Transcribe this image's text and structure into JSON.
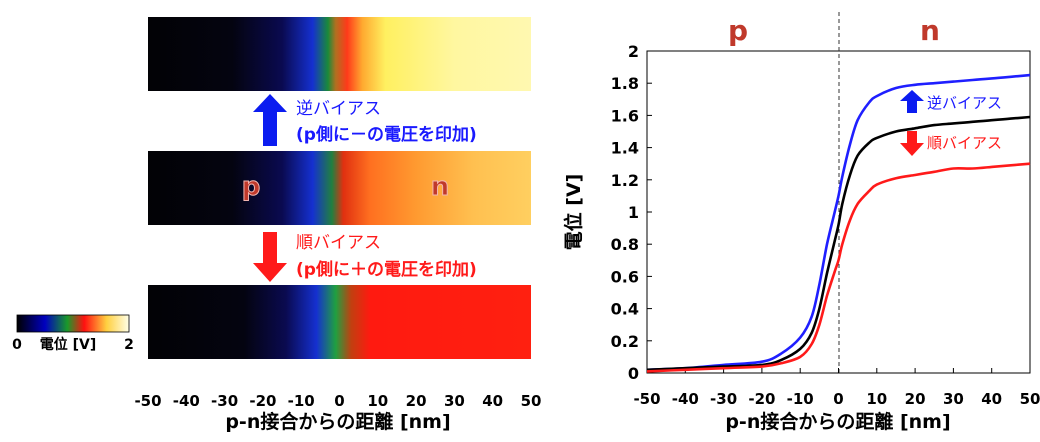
{
  "maps": {
    "top": {
      "state": "reverse"
    },
    "middle": {
      "state": "none",
      "p_label": "p",
      "n_label": "n"
    },
    "bottom": {
      "state": "forward"
    },
    "arrow_reverse": {
      "line1": "逆バイアス",
      "line2": "(p側に－の電圧を印加)"
    },
    "arrow_forward": {
      "line1": "順バイアス",
      "line2": "(p側に＋の電圧を印加)"
    },
    "x_ticks": [
      "-50",
      "-40",
      "-30",
      "-20",
      "-10",
      "0",
      "10",
      "20",
      "30",
      "40",
      "50"
    ],
    "xlabel": "p-n接合からの距離 [nm]"
  },
  "colorbar": {
    "min_label": "0",
    "max_label": "2",
    "label": "電位 [V]"
  },
  "chart_data": {
    "type": "line",
    "title": "",
    "region_labels": [
      "p",
      "n"
    ],
    "xlabel": "p-n接合からの距離 [nm]",
    "ylabel": "電位 [V]",
    "xlim": [
      -50,
      50
    ],
    "ylim": [
      0,
      2
    ],
    "x_ticks": [
      "-50",
      "-40",
      "-30",
      "-20",
      "-10",
      "0",
      "10",
      "20",
      "30",
      "40",
      "50"
    ],
    "y_ticks": [
      "0",
      "0.2",
      "0.4",
      "0.6",
      "0.8",
      "1",
      "1.2",
      "1.4",
      "1.6",
      "1.8",
      "2"
    ],
    "junction_x": 0,
    "x": [
      -50,
      -40,
      -30,
      -20,
      -15,
      -10,
      -7,
      -5,
      -3,
      -1,
      0,
      1,
      3,
      5,
      8,
      10,
      15,
      20,
      25,
      30,
      35,
      40,
      45,
      50
    ],
    "series": [
      {
        "name": "逆バイアス",
        "color": "#1f1fff",
        "values": [
          0.02,
          0.03,
          0.05,
          0.07,
          0.12,
          0.22,
          0.35,
          0.55,
          0.8,
          1.0,
          1.1,
          1.22,
          1.42,
          1.57,
          1.68,
          1.72,
          1.77,
          1.79,
          1.8,
          1.81,
          1.82,
          1.83,
          1.84,
          1.85
        ]
      },
      {
        "name": "",
        "color": "#000000",
        "values": [
          0.02,
          0.03,
          0.04,
          0.05,
          0.08,
          0.15,
          0.25,
          0.4,
          0.62,
          0.82,
          0.92,
          1.05,
          1.23,
          1.35,
          1.43,
          1.46,
          1.5,
          1.52,
          1.54,
          1.55,
          1.56,
          1.57,
          1.58,
          1.59
        ]
      },
      {
        "name": "順バイアス",
        "color": "#ff1a1a",
        "values": [
          0.01,
          0.02,
          0.03,
          0.04,
          0.06,
          0.1,
          0.18,
          0.3,
          0.48,
          0.63,
          0.7,
          0.8,
          0.95,
          1.05,
          1.13,
          1.17,
          1.21,
          1.23,
          1.25,
          1.27,
          1.27,
          1.28,
          1.29,
          1.3
        ]
      }
    ],
    "grid": false,
    "legend": "arrows near curves"
  }
}
